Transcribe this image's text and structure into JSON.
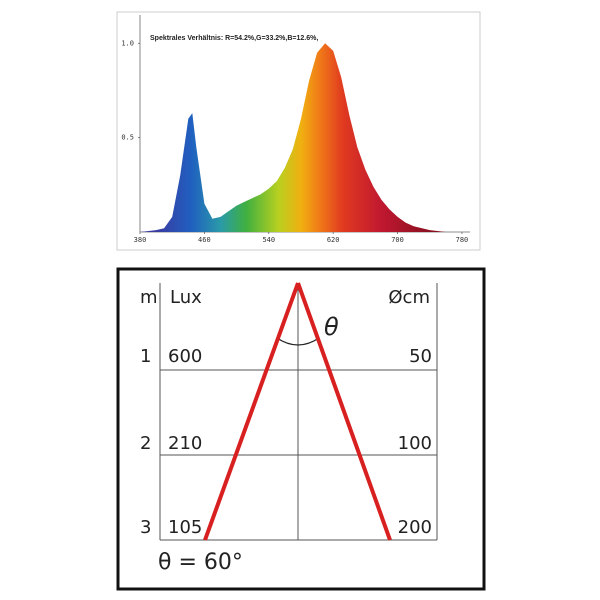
{
  "chart_data": {
    "type": "area",
    "title": "Spektrales Verhältnis:  R=54.2%,G=33.2%,B=12.6%,",
    "x": [
      380,
      400,
      410,
      420,
      430,
      440,
      445,
      450,
      460,
      470,
      480,
      490,
      500,
      510,
      520,
      530,
      540,
      550,
      560,
      570,
      580,
      590,
      600,
      610,
      620,
      630,
      640,
      650,
      660,
      670,
      680,
      690,
      700,
      710,
      720,
      740,
      760,
      780
    ],
    "values": [
      0,
      0.01,
      0.02,
      0.08,
      0.3,
      0.6,
      0.63,
      0.45,
      0.15,
      0.07,
      0.08,
      0.11,
      0.14,
      0.16,
      0.18,
      0.2,
      0.23,
      0.27,
      0.34,
      0.44,
      0.6,
      0.8,
      0.95,
      1.0,
      0.96,
      0.82,
      0.62,
      0.45,
      0.33,
      0.24,
      0.17,
      0.12,
      0.08,
      0.05,
      0.03,
      0.01,
      0,
      0
    ],
    "xlim": [
      380,
      790
    ],
    "xticks": [
      380,
      460,
      540,
      620,
      700,
      780
    ],
    "ylim": [
      0,
      1.15
    ],
    "yticks": [
      {
        "value": 1,
        "label": "1.0"
      },
      0.5
    ]
  },
  "diagram": {
    "headers": {
      "distance": "m",
      "lux": "Lux",
      "diameter": "Øcm"
    },
    "angle_symbol": "θ",
    "angle_caption": "θ = 60°",
    "rows": [
      {
        "distance": 1,
        "lux": 600,
        "diameter": 50
      },
      {
        "distance": 2,
        "lux": 210,
        "diameter": 100
      },
      {
        "distance": 3,
        "lux": 105,
        "diameter": 200
      }
    ]
  }
}
